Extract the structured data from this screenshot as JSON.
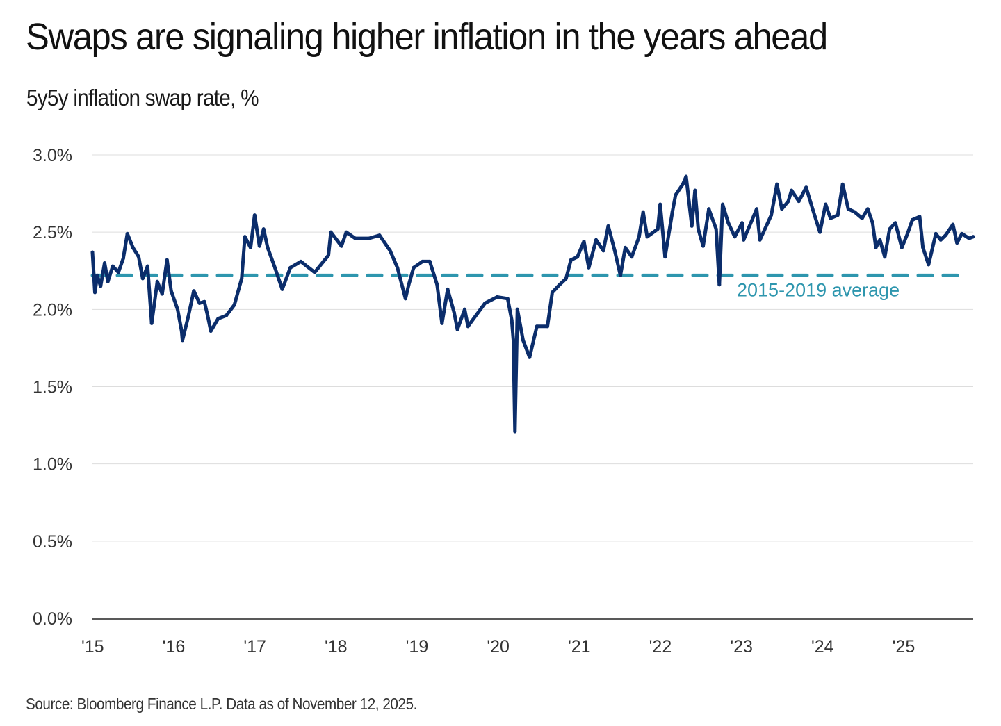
{
  "header": {
    "title": "Swaps are signaling higher inflation in the years ahead",
    "subtitle": "5y5y inflation swap rate, %"
  },
  "footer": {
    "source": "Source:  Bloomberg Finance L.P. Data as of November 12, 2025."
  },
  "colors": {
    "series": "#0B2D6B",
    "average": "#2E96AE",
    "grid": "#DDDDDD",
    "axis": "#222222"
  },
  "chart_data": {
    "type": "line",
    "title": "Swaps are signaling higher inflation in the years ahead",
    "subtitle": "5y5y inflation swap rate, %",
    "xlabel": "",
    "ylabel": "",
    "xlim": [
      2015.0,
      2025.86
    ],
    "ylim": [
      0,
      3.0
    ],
    "yticks": [
      0.0,
      0.5,
      1.0,
      1.5,
      2.0,
      2.5,
      3.0
    ],
    "ytick_labels": [
      "0.0%",
      "0.5%",
      "1.0%",
      "1.5%",
      "2.0%",
      "2.5%",
      "3.0%"
    ],
    "xticks": [
      2015,
      2016,
      2017,
      2018,
      2019,
      2020,
      2021,
      2022,
      2023,
      2024,
      2025
    ],
    "xtick_labels": [
      "'15",
      "'16",
      "'17",
      "'18",
      "'19",
      "'20",
      "'21",
      "'22",
      "'23",
      "'24",
      "'25"
    ],
    "grid": true,
    "series": [
      {
        "name": "5y5y inflation swap rate",
        "points": [
          [
            2015.0,
            2.37
          ],
          [
            2015.03,
            2.11
          ],
          [
            2015.06,
            2.22
          ],
          [
            2015.1,
            2.15
          ],
          [
            2015.15,
            2.3
          ],
          [
            2015.19,
            2.18
          ],
          [
            2015.25,
            2.28
          ],
          [
            2015.32,
            2.24
          ],
          [
            2015.38,
            2.33
          ],
          [
            2015.43,
            2.49
          ],
          [
            2015.5,
            2.4
          ],
          [
            2015.57,
            2.34
          ],
          [
            2015.62,
            2.2
          ],
          [
            2015.68,
            2.28
          ],
          [
            2015.73,
            1.91
          ],
          [
            2015.8,
            2.18
          ],
          [
            2015.86,
            2.1
          ],
          [
            2015.92,
            2.32
          ],
          [
            2015.97,
            2.12
          ],
          [
            2016.05,
            2.0
          ],
          [
            2016.1,
            1.86
          ],
          [
            2016.11,
            1.8
          ],
          [
            2016.18,
            1.95
          ],
          [
            2016.25,
            2.12
          ],
          [
            2016.32,
            2.04
          ],
          [
            2016.38,
            2.05
          ],
          [
            2016.42,
            1.96
          ],
          [
            2016.46,
            1.86
          ],
          [
            2016.55,
            1.94
          ],
          [
            2016.65,
            1.96
          ],
          [
            2016.75,
            2.03
          ],
          [
            2016.84,
            2.2
          ],
          [
            2016.88,
            2.47
          ],
          [
            2016.95,
            2.4
          ],
          [
            2017.0,
            2.61
          ],
          [
            2017.06,
            2.41
          ],
          [
            2017.11,
            2.52
          ],
          [
            2017.16,
            2.4
          ],
          [
            2017.25,
            2.27
          ],
          [
            2017.34,
            2.13
          ],
          [
            2017.44,
            2.27
          ],
          [
            2017.57,
            2.31
          ],
          [
            2017.74,
            2.24
          ],
          [
            2017.91,
            2.35
          ],
          [
            2017.94,
            2.5
          ],
          [
            2018.07,
            2.41
          ],
          [
            2018.13,
            2.5
          ],
          [
            2018.24,
            2.46
          ],
          [
            2018.41,
            2.46
          ],
          [
            2018.54,
            2.48
          ],
          [
            2018.67,
            2.38
          ],
          [
            2018.76,
            2.27
          ],
          [
            2018.86,
            2.07
          ],
          [
            2018.9,
            2.16
          ],
          [
            2018.96,
            2.27
          ],
          [
            2019.07,
            2.31
          ],
          [
            2019.16,
            2.31
          ],
          [
            2019.25,
            2.16
          ],
          [
            2019.31,
            1.91
          ],
          [
            2019.38,
            2.13
          ],
          [
            2019.46,
            1.98
          ],
          [
            2019.5,
            1.87
          ],
          [
            2019.59,
            2.0
          ],
          [
            2019.63,
            1.89
          ],
          [
            2019.84,
            2.04
          ],
          [
            2019.99,
            2.08
          ],
          [
            2020.12,
            2.07
          ],
          [
            2020.17,
            1.93
          ],
          [
            2020.19,
            1.8
          ],
          [
            2020.21,
            1.21
          ],
          [
            2020.24,
            2.0
          ],
          [
            2020.31,
            1.8
          ],
          [
            2020.39,
            1.69
          ],
          [
            2020.48,
            1.89
          ],
          [
            2020.61,
            1.89
          ],
          [
            2020.67,
            2.11
          ],
          [
            2020.76,
            2.16
          ],
          [
            2020.84,
            2.2
          ],
          [
            2020.9,
            2.32
          ],
          [
            2020.98,
            2.34
          ],
          [
            2021.06,
            2.44
          ],
          [
            2021.12,
            2.27
          ],
          [
            2021.21,
            2.45
          ],
          [
            2021.3,
            2.38
          ],
          [
            2021.36,
            2.54
          ],
          [
            2021.44,
            2.38
          ],
          [
            2021.51,
            2.22
          ],
          [
            2021.57,
            2.4
          ],
          [
            2021.65,
            2.34
          ],
          [
            2021.74,
            2.47
          ],
          [
            2021.79,
            2.63
          ],
          [
            2021.84,
            2.47
          ],
          [
            2021.97,
            2.52
          ],
          [
            2022.0,
            2.68
          ],
          [
            2022.06,
            2.34
          ],
          [
            2022.15,
            2.63
          ],
          [
            2022.19,
            2.74
          ],
          [
            2022.28,
            2.81
          ],
          [
            2022.32,
            2.86
          ],
          [
            2022.39,
            2.54
          ],
          [
            2022.43,
            2.77
          ],
          [
            2022.47,
            2.52
          ],
          [
            2022.53,
            2.41
          ],
          [
            2022.6,
            2.65
          ],
          [
            2022.69,
            2.52
          ],
          [
            2022.73,
            2.16
          ],
          [
            2022.77,
            2.68
          ],
          [
            2022.84,
            2.56
          ],
          [
            2022.92,
            2.47
          ],
          [
            2023.01,
            2.56
          ],
          [
            2023.03,
            2.45
          ],
          [
            2023.19,
            2.65
          ],
          [
            2023.23,
            2.45
          ],
          [
            2023.37,
            2.61
          ],
          [
            2023.44,
            2.81
          ],
          [
            2023.5,
            2.65
          ],
          [
            2023.58,
            2.7
          ],
          [
            2023.62,
            2.77
          ],
          [
            2023.71,
            2.7
          ],
          [
            2023.8,
            2.79
          ],
          [
            2023.88,
            2.65
          ],
          [
            2023.97,
            2.5
          ],
          [
            2024.04,
            2.68
          ],
          [
            2024.1,
            2.59
          ],
          [
            2024.19,
            2.61
          ],
          [
            2024.25,
            2.81
          ],
          [
            2024.32,
            2.65
          ],
          [
            2024.4,
            2.63
          ],
          [
            2024.49,
            2.59
          ],
          [
            2024.56,
            2.65
          ],
          [
            2024.62,
            2.56
          ],
          [
            2024.66,
            2.4
          ],
          [
            2024.71,
            2.45
          ],
          [
            2024.77,
            2.34
          ],
          [
            2024.83,
            2.52
          ],
          [
            2024.9,
            2.56
          ],
          [
            2024.98,
            2.4
          ],
          [
            2025.05,
            2.49
          ],
          [
            2025.11,
            2.58
          ],
          [
            2025.2,
            2.6
          ],
          [
            2025.24,
            2.4
          ],
          [
            2025.31,
            2.29
          ],
          [
            2025.4,
            2.49
          ],
          [
            2025.46,
            2.45
          ],
          [
            2025.52,
            2.48
          ],
          [
            2025.61,
            2.55
          ],
          [
            2025.66,
            2.43
          ],
          [
            2025.72,
            2.49
          ],
          [
            2025.81,
            2.46
          ],
          [
            2025.86,
            2.47
          ]
        ]
      }
    ],
    "reference_lines": [
      {
        "name": "2015-2019 average",
        "label": "2015-2019 average",
        "value": 2.22,
        "style": "dashed",
        "x_end": 2025.7
      }
    ]
  }
}
